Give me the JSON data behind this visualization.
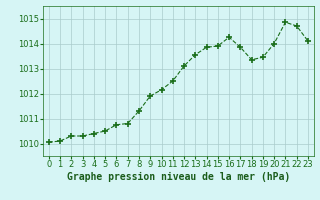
{
  "x": [
    0,
    1,
    2,
    3,
    4,
    5,
    6,
    7,
    8,
    9,
    10,
    11,
    12,
    13,
    14,
    15,
    16,
    17,
    18,
    19,
    20,
    21,
    22,
    23
  ],
  "y": [
    1010.05,
    1010.1,
    1010.3,
    1010.3,
    1010.4,
    1010.5,
    1010.75,
    1010.8,
    1011.3,
    1011.9,
    1012.15,
    1012.5,
    1013.1,
    1013.55,
    1013.85,
    1013.9,
    1014.25,
    1013.85,
    1013.35,
    1013.45,
    1014.0,
    1014.85,
    1014.7,
    1014.1
  ],
  "line_color": "#1a6e1a",
  "marker_color": "#1a6e1a",
  "bg_color": "#d6f5f5",
  "grid_color": "#aacccc",
  "axis_label_color": "#1a5c1a",
  "tick_color": "#1a6e1a",
  "xlabel": "Graphe pression niveau de la mer (hPa)",
  "ylim": [
    1009.5,
    1015.5
  ],
  "yticks": [
    1010,
    1011,
    1012,
    1013,
    1014,
    1015
  ],
  "xticks": [
    0,
    1,
    2,
    3,
    4,
    5,
    6,
    7,
    8,
    9,
    10,
    11,
    12,
    13,
    14,
    15,
    16,
    17,
    18,
    19,
    20,
    21,
    22,
    23
  ],
  "font_size_label": 7,
  "font_size_tick": 6.0
}
